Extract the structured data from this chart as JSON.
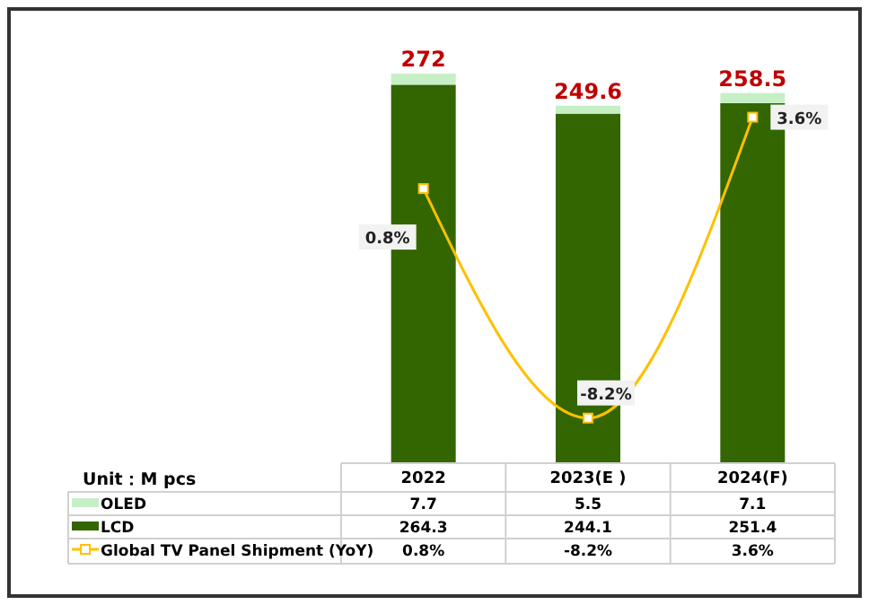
{
  "chart_data": {
    "type": "bar",
    "stacked": true,
    "categories": [
      "2022",
      "2023(E )",
      "2024(F)"
    ],
    "series": [
      {
        "name": "LCD",
        "color": "#336600",
        "values": [
          264.3,
          244.1,
          251.4
        ]
      },
      {
        "name": "OLED",
        "color": "#c6efc6",
        "values": [
          7.7,
          5.5,
          7.1
        ]
      },
      {
        "name": "Global TV Panel Shipment (YoY)",
        "type": "line",
        "axis": "y2",
        "color": "#ffc000",
        "values": [
          0.8,
          -8.2,
          3.6
        ],
        "value_labels": [
          "0.8%",
          "-8.2%",
          "3.6%"
        ]
      }
    ],
    "marker": "square",
    "tick_labels": false,
    "data_labels": true,
    "totals": [
      "272",
      "249.6",
      "258.5"
    ],
    "annotations": [
      "Unit：M pcs"
    ],
    "legend": "bottom left"
  }
}
